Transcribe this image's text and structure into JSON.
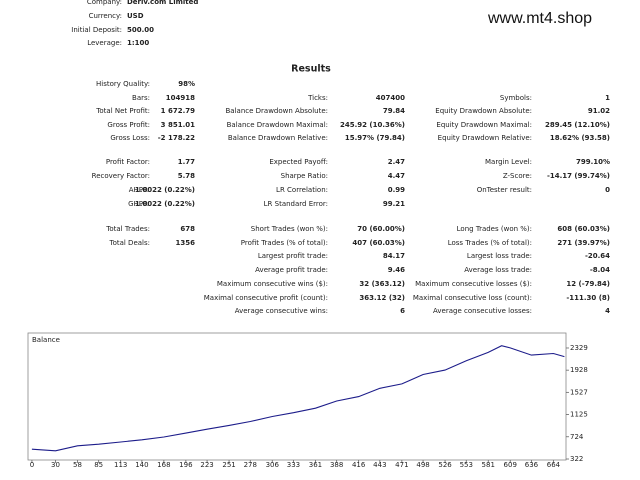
{
  "header": {
    "watermark": "www.mt4.shop",
    "fields": [
      [
        "Company:",
        "Deriv.com Limited"
      ],
      [
        "Currency:",
        "USD"
      ],
      [
        "Initial Deposit:",
        "500.00"
      ],
      [
        "Leverage:",
        "1:100"
      ]
    ]
  },
  "report": {
    "title": "Results",
    "rows": [
      [
        "History Quality:",
        "98%",
        null,
        null,
        null,
        null
      ],
      [
        "Bars:",
        "104918",
        "Ticks:",
        "407400",
        "Symbols:",
        "1"
      ],
      [
        "Total Net Profit:",
        "1 672.79",
        "Balance Drawdown Absolute:",
        "79.84",
        "Equity Drawdown Absolute:",
        "91.02"
      ],
      [
        "Gross Profit:",
        "3 851.01",
        "Balance Drawdown Maximal:",
        "245.92 (10.36%)",
        "Equity Drawdown Maximal:",
        "289.45 (12.10%)"
      ],
      [
        "Gross Loss:",
        "-2 178.22",
        "Balance Drawdown Relative:",
        "15.97% (79.84)",
        "Equity Drawdown Relative:",
        "18.62% (93.58)"
      ],
      [
        "Profit Factor:",
        "1.77",
        "Expected Payoff:",
        "2.47",
        "Margin Level:",
        "799.10%"
      ],
      [
        "Recovery Factor:",
        "5.78",
        "Sharpe Ratio:",
        "4.47",
        "Z-Score:",
        "-14.17 (99.74%)"
      ],
      [
        "AHPR:",
        "1.0022 (0.22%)",
        "LR Correlation:",
        "0.99",
        "OnTester result:",
        "0"
      ],
      [
        "GHPR:",
        "1.0022 (0.22%)",
        "LR Standard Error:",
        "99.21",
        null,
        null
      ],
      [
        "Total Trades:",
        "678",
        "Short Trades (won %):",
        "70 (60.00%)",
        "Long Trades (won %):",
        "608 (60.03%)"
      ],
      [
        "Total Deals:",
        "1356",
        "Profit Trades (% of total):",
        "407 (60.03%)",
        "Loss Trades (% of total):",
        "271 (39.97%)"
      ],
      [
        null,
        null,
        "Largest profit trade:",
        "84.17",
        "Largest loss trade:",
        "-20.64"
      ],
      [
        null,
        null,
        "Average profit trade:",
        "9.46",
        "Average loss trade:",
        "-8.04"
      ],
      [
        null,
        null,
        "Maximum consecutive wins ($):",
        "32 (363.12)",
        "Maximum consecutive losses ($):",
        "12 (-79.84)"
      ],
      [
        null,
        null,
        "Maximal consecutive profit (count):",
        "363.12 (32)",
        "Maximal consecutive loss (count):",
        "-111.30 (8)"
      ],
      [
        null,
        null,
        "Average consecutive wins:",
        "6",
        "Average consecutive losses:",
        "4"
      ]
    ]
  },
  "chart_data": {
    "type": "line",
    "title": "Balance",
    "color": "#1c1c8a",
    "x": [
      0,
      30,
      58,
      85,
      113,
      140,
      168,
      196,
      223,
      251,
      278,
      306,
      333,
      361,
      388,
      416,
      443,
      471,
      498,
      526,
      553,
      581,
      598,
      609,
      636,
      664,
      678
    ],
    "values": [
      500,
      470,
      560,
      590,
      630,
      670,
      720,
      790,
      860,
      930,
      1000,
      1090,
      1160,
      1240,
      1370,
      1450,
      1600,
      1680,
      1850,
      1930,
      2100,
      2250,
      2370,
      2330,
      2200,
      2230,
      2173
    ],
    "xlim": [
      -5,
      680
    ],
    "ylim": [
      304,
      2600
    ],
    "xticks": [
      0,
      30,
      58,
      85,
      113,
      140,
      168,
      196,
      223,
      251,
      278,
      306,
      333,
      361,
      388,
      416,
      443,
      471,
      498,
      526,
      553,
      581,
      609,
      636,
      664
    ],
    "yticks": [
      322,
      724,
      1125,
      1527,
      1928,
      2329
    ]
  }
}
